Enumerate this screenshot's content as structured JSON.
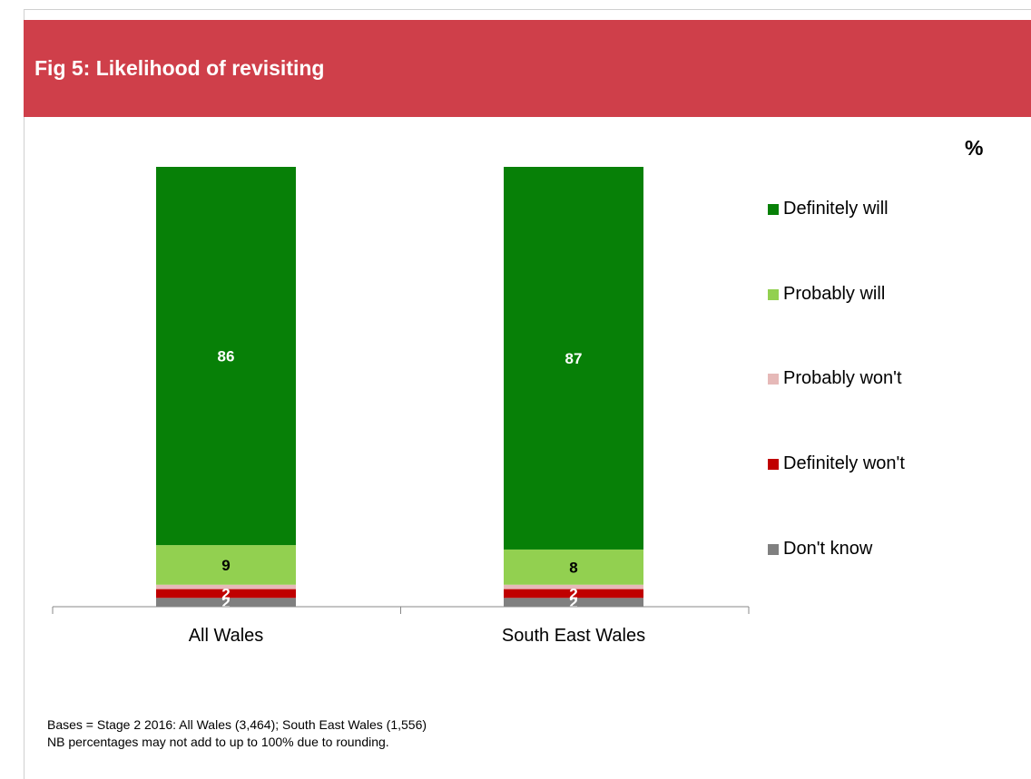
{
  "title": "Fig 5: Likelihood of revisiting",
  "unit_label": "%",
  "footnotes": [
    "Bases = Stage 2 2016: All Wales (3,464); South East Wales (1,556)",
    "NB percentages may not add to up to 100% due to rounding."
  ],
  "colors": {
    "title_bg": "#cf3f4a",
    "definitely_will": "#078007",
    "probably_will": "#92d050",
    "probably_wont": "#e6b9b8",
    "definitely_wont": "#c00000",
    "dont_know": "#808080"
  },
  "chart_data": {
    "type": "bar",
    "stacked": true,
    "categories": [
      "All Wales",
      "South East Wales"
    ],
    "series": [
      {
        "name": "Don't know",
        "values": [
          2,
          2
        ],
        "color": "#808080",
        "labels": [
          "2",
          "2"
        ]
      },
      {
        "name": "Definitely won't",
        "values": [
          2,
          2
        ],
        "color": "#c00000",
        "labels": [
          "2",
          "2"
        ]
      },
      {
        "name": "Probably won't",
        "values": [
          1,
          1
        ],
        "color": "#e6b9b8",
        "labels": [
          "",
          ""
        ]
      },
      {
        "name": "Probably will",
        "values": [
          9,
          8
        ],
        "color": "#92d050",
        "labels": [
          "9",
          "8"
        ]
      },
      {
        "name": "Definitely will",
        "values": [
          86,
          87
        ],
        "color": "#078007",
        "labels": [
          "86",
          "87"
        ]
      }
    ],
    "legend_order": [
      "Definitely will",
      "Probably will",
      "Probably won't",
      "Definitely won't",
      "Don't know"
    ],
    "legend_position": "right",
    "ylim": [
      0,
      100
    ],
    "grid": false
  }
}
